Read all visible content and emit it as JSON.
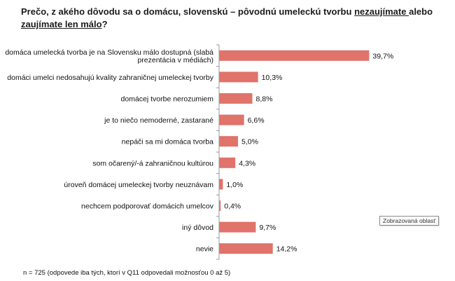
{
  "title": {
    "part1": "Prečo, z akého dôvodu sa o domácu, slovenskú – pôvodnú umeleckú tvorbu ",
    "underlined": "nezaujímate ",
    "part2": "alebo ",
    "underlined2": "zaujímate len málo",
    "part3": "?"
  },
  "footnote": "n = 725 (odpovede iba tých, ktorí v Q11 odpovedali možnosťou 0 až 5)",
  "tooltip": "Zobrazovaná oblasť",
  "colors": {
    "bar": "#e0736a",
    "axis": "#9a9a9a",
    "text": "#111111"
  },
  "chart_data": {
    "type": "bar",
    "orientation": "horizontal",
    "categories": [
      [
        "domáca umelecká tvorba je na Slovensku málo dostupná (slabá",
        "prezentácia v médiách)"
      ],
      [
        "domáci umelci nedosahujú kvality zahraničnej umeleckej tvorby"
      ],
      [
        "domácej  tvorbe nerozumiem"
      ],
      [
        "je to niečo nemoderné, zastarané"
      ],
      [
        "nepáči sa mi domáca tvorba"
      ],
      [
        "som očarený/-á zahraničnou kultúrou"
      ],
      [
        "úroveň domácej umeleckej tvorby neuznávam"
      ],
      [
        "nechcem podporovať domácich umelcov"
      ],
      [
        "iný dôvod"
      ],
      [
        "nevie"
      ]
    ],
    "values": [
      39.7,
      10.3,
      8.8,
      6.6,
      5.0,
      4.3,
      1.0,
      0.4,
      9.7,
      14.2
    ],
    "value_labels": [
      "39,7%",
      "10,3%",
      "8,8%",
      "6,6%",
      "5,0%",
      "4,3%",
      "1,0%",
      "0,4%",
      "9,7%",
      "14,2%"
    ],
    "xlim": [
      0,
      50
    ],
    "grid": false,
    "legend": "none"
  }
}
